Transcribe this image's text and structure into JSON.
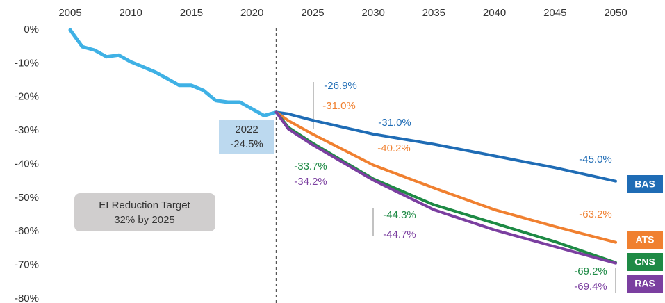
{
  "chart_data": {
    "type": "line",
    "xlim": [
      2005,
      2050
    ],
    "xticks": [
      2005,
      2010,
      2015,
      2020,
      2025,
      2030,
      2035,
      2040,
      2045,
      2050
    ],
    "ylim": [
      -80,
      0
    ],
    "yticks": [
      {
        "value": 0,
        "label": "0%"
      },
      {
        "value": -10,
        "label": "-10%"
      },
      {
        "value": -20,
        "label": "-20%"
      },
      {
        "value": -30,
        "label": "-30%"
      },
      {
        "value": -40,
        "label": "-40%"
      },
      {
        "value": -50,
        "label": "-50%"
      },
      {
        "value": -60,
        "label": "-60%"
      },
      {
        "value": -70,
        "label": "-70%"
      },
      {
        "value": -80,
        "label": "-80%"
      }
    ],
    "grid": false,
    "reference_line_x": 2022,
    "series": [
      {
        "color": "#3fb1e5",
        "x": [
          2005,
          2006,
          2007,
          2008,
          2009,
          2010,
          2011,
          2012,
          2013,
          2014,
          2015,
          2016,
          2017,
          2018,
          2019,
          2020,
          2021,
          2022
        ],
        "values": [
          0,
          -5,
          -6,
          -8,
          -7.5,
          -9.5,
          -11,
          -12.5,
          -14.5,
          -16.5,
          -16.5,
          -18,
          -21,
          -21.5,
          -21.5,
          -23.5,
          -25.5,
          -24.5
        ]
      },
      {
        "name": "BAS",
        "color": "#1f6cb5",
        "x": [
          2022,
          2023,
          2025,
          2030,
          2035,
          2040,
          2045,
          2050
        ],
        "values": [
          -24.5,
          -25,
          -26.9,
          -31.0,
          -34,
          -37.5,
          -41,
          -45.0
        ],
        "value_labels": [
          null,
          null,
          "-26.9%",
          "-31.0%",
          null,
          null,
          null,
          "-45.0%"
        ]
      },
      {
        "name": "ATS",
        "color": "#f08030",
        "x": [
          2022,
          2023,
          2025,
          2030,
          2035,
          2040,
          2045,
          2050
        ],
        "values": [
          -24.5,
          -27,
          -31.0,
          -40.2,
          -47,
          -53.5,
          -58.5,
          -63.2
        ],
        "value_labels": [
          null,
          null,
          "-31.0%",
          "-40.2%",
          null,
          null,
          null,
          "-63.2%"
        ]
      },
      {
        "name": "CNS",
        "color": "#1e8a45",
        "x": [
          2022,
          2023,
          2025,
          2030,
          2035,
          2040,
          2045,
          2050
        ],
        "values": [
          -24.5,
          -29,
          -33.7,
          -44.3,
          -52,
          -57.5,
          -63,
          -69.2
        ],
        "value_labels": [
          null,
          null,
          "-33.7%",
          "-44.3%",
          null,
          null,
          null,
          "-69.2%"
        ]
      },
      {
        "name": "RAS",
        "color": "#7b3fa0",
        "x": [
          2022,
          2023,
          2025,
          2030,
          2035,
          2040,
          2045,
          2050
        ],
        "values": [
          -24.5,
          -29.5,
          -34.2,
          -44.7,
          -53.5,
          -59.5,
          -64.5,
          -69.4
        ],
        "value_labels": [
          null,
          null,
          "-34.2%",
          "-44.7%",
          null,
          null,
          null,
          "-69.4%"
        ]
      }
    ],
    "annotations": [
      "2022",
      "-24.5%",
      "EI Reduction Target",
      "32% by 2025"
    ]
  }
}
